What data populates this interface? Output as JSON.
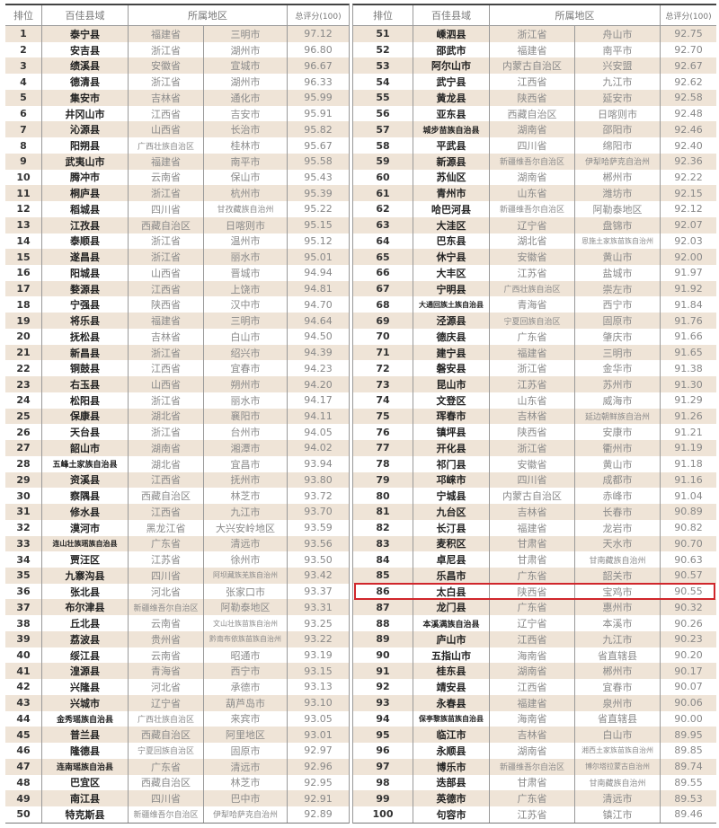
{
  "header": {
    "rank": "排位",
    "name": "百佳县域",
    "region": "所属地区",
    "score": "总评分(100)"
  },
  "highlight_rank": 86,
  "highlight_color": "#d0262b",
  "rows": [
    [
      "1",
      "泰宁县",
      "福建省",
      "三明市",
      "97.12"
    ],
    [
      "2",
      "安吉县",
      "浙江省",
      "湖州市",
      "96.80"
    ],
    [
      "3",
      "绩溪县",
      "安徽省",
      "宣城市",
      "96.67"
    ],
    [
      "4",
      "德清县",
      "浙江省",
      "湖州市",
      "96.33"
    ],
    [
      "5",
      "集安市",
      "吉林省",
      "通化市",
      "95.99"
    ],
    [
      "6",
      "井冈山市",
      "江西省",
      "吉安市",
      "95.91"
    ],
    [
      "7",
      "沁源县",
      "山西省",
      "长治市",
      "95.82"
    ],
    [
      "8",
      "阳朔县",
      "广西壮族自治区",
      "桂林市",
      "95.67"
    ],
    [
      "9",
      "武夷山市",
      "福建省",
      "南平市",
      "95.58"
    ],
    [
      "10",
      "腾冲市",
      "云南省",
      "保山市",
      "95.43"
    ],
    [
      "11",
      "桐庐县",
      "浙江省",
      "杭州市",
      "95.39"
    ],
    [
      "12",
      "稻城县",
      "四川省",
      "甘孜藏族自治州",
      "95.22"
    ],
    [
      "13",
      "江孜县",
      "西藏自治区",
      "日喀则市",
      "95.15"
    ],
    [
      "14",
      "泰顺县",
      "浙江省",
      "温州市",
      "95.12"
    ],
    [
      "15",
      "遂昌县",
      "浙江省",
      "丽水市",
      "95.01"
    ],
    [
      "16",
      "阳城县",
      "山西省",
      "晋城市",
      "94.94"
    ],
    [
      "17",
      "婺源县",
      "江西省",
      "上饶市",
      "94.81"
    ],
    [
      "18",
      "宁强县",
      "陕西省",
      "汉中市",
      "94.70"
    ],
    [
      "19",
      "将乐县",
      "福建省",
      "三明市",
      "94.64"
    ],
    [
      "20",
      "抚松县",
      "吉林省",
      "白山市",
      "94.50"
    ],
    [
      "21",
      "新昌县",
      "浙江省",
      "绍兴市",
      "94.39"
    ],
    [
      "22",
      "铜鼓县",
      "江西省",
      "宜春市",
      "94.23"
    ],
    [
      "23",
      "右玉县",
      "山西省",
      "朔州市",
      "94.20"
    ],
    [
      "24",
      "松阳县",
      "浙江省",
      "丽水市",
      "94.17"
    ],
    [
      "25",
      "保康县",
      "湖北省",
      "襄阳市",
      "94.11"
    ],
    [
      "26",
      "天台县",
      "浙江省",
      "台州市",
      "94.05"
    ],
    [
      "27",
      "韶山市",
      "湖南省",
      "湘潭市",
      "94.02"
    ],
    [
      "28",
      "五峰土家族自治县",
      "湖北省",
      "宜昌市",
      "93.94"
    ],
    [
      "29",
      "资溪县",
      "江西省",
      "抚州市",
      "93.80"
    ],
    [
      "30",
      "察隅县",
      "西藏自治区",
      "林芝市",
      "93.72"
    ],
    [
      "31",
      "修水县",
      "江西省",
      "九江市",
      "93.70"
    ],
    [
      "32",
      "漠河市",
      "黑龙江省",
      "大兴安岭地区",
      "93.59"
    ],
    [
      "33",
      "连山壮族瑶族自治县",
      "广东省",
      "清远市",
      "93.56"
    ],
    [
      "34",
      "贾汪区",
      "江苏省",
      "徐州市",
      "93.50"
    ],
    [
      "35",
      "九寨沟县",
      "四川省",
      "阿坝藏族羌族自治州",
      "93.42"
    ],
    [
      "36",
      "张北县",
      "河北省",
      "张家口市",
      "93.37"
    ],
    [
      "37",
      "布尔津县",
      "新疆维吾尔自治区",
      "阿勒泰地区",
      "93.31"
    ],
    [
      "38",
      "丘北县",
      "云南省",
      "文山壮族苗族自治州",
      "93.25"
    ],
    [
      "39",
      "荔波县",
      "贵州省",
      "黔南布依族苗族自治州",
      "93.22"
    ],
    [
      "40",
      "绥江县",
      "云南省",
      "昭通市",
      "93.19"
    ],
    [
      "41",
      "湟源县",
      "青海省",
      "西宁市",
      "93.15"
    ],
    [
      "42",
      "兴隆县",
      "河北省",
      "承德市",
      "93.13"
    ],
    [
      "43",
      "兴城市",
      "辽宁省",
      "葫芦岛市",
      "93.10"
    ],
    [
      "44",
      "金秀瑶族自治县",
      "广西壮族自治区",
      "来宾市",
      "93.05"
    ],
    [
      "45",
      "普兰县",
      "西藏自治区",
      "阿里地区",
      "93.01"
    ],
    [
      "46",
      "隆德县",
      "宁夏回族自治区",
      "固原市",
      "92.97"
    ],
    [
      "47",
      "连南瑶族自治县",
      "广东省",
      "清远市",
      "92.96"
    ],
    [
      "48",
      "巴宜区",
      "西藏自治区",
      "林芝市",
      "92.95"
    ],
    [
      "49",
      "南江县",
      "四川省",
      "巴中市",
      "92.91"
    ],
    [
      "50",
      "特克斯县",
      "新疆维吾尔自治区",
      "伊犁哈萨克自治州",
      "92.89"
    ],
    [
      "51",
      "嵊泗县",
      "浙江省",
      "舟山市",
      "92.75"
    ],
    [
      "52",
      "邵武市",
      "福建省",
      "南平市",
      "92.70"
    ],
    [
      "53",
      "阿尔山市",
      "内蒙古自治区",
      "兴安盟",
      "92.67"
    ],
    [
      "54",
      "武宁县",
      "江西省",
      "九江市",
      "92.62"
    ],
    [
      "55",
      "黄龙县",
      "陕西省",
      "延安市",
      "92.58"
    ],
    [
      "56",
      "亚东县",
      "西藏自治区",
      "日喀则市",
      "92.48"
    ],
    [
      "57",
      "城步苗族自治县",
      "湖南省",
      "邵阳市",
      "92.46"
    ],
    [
      "58",
      "平武县",
      "四川省",
      "绵阳市",
      "92.40"
    ],
    [
      "59",
      "新源县",
      "新疆维吾尔自治区",
      "伊犁哈萨克自治州",
      "92.36"
    ],
    [
      "60",
      "苏仙区",
      "湖南省",
      "郴州市",
      "92.22"
    ],
    [
      "61",
      "青州市",
      "山东省",
      "潍坊市",
      "92.15"
    ],
    [
      "62",
      "哈巴河县",
      "新疆维吾尔自治区",
      "阿勒泰地区",
      "92.12"
    ],
    [
      "63",
      "大洼区",
      "辽宁省",
      "盘锦市",
      "92.07"
    ],
    [
      "64",
      "巴东县",
      "湖北省",
      "恩施土家族苗族自治州",
      "92.03"
    ],
    [
      "65",
      "休宁县",
      "安徽省",
      "黄山市",
      "92.00"
    ],
    [
      "66",
      "大丰区",
      "江苏省",
      "盐城市",
      "91.97"
    ],
    [
      "67",
      "宁明县",
      "广西壮族自治区",
      "崇左市",
      "91.92"
    ],
    [
      "68",
      "大通回族土族自治县",
      "青海省",
      "西宁市",
      "91.84"
    ],
    [
      "69",
      "泾源县",
      "宁夏回族自治区",
      "固原市",
      "91.76"
    ],
    [
      "70",
      "德庆县",
      "广东省",
      "肇庆市",
      "91.66"
    ],
    [
      "71",
      "建宁县",
      "福建省",
      "三明市",
      "91.65"
    ],
    [
      "72",
      "磐安县",
      "浙江省",
      "金华市",
      "91.38"
    ],
    [
      "73",
      "昆山市",
      "江苏省",
      "苏州市",
      "91.30"
    ],
    [
      "74",
      "文登区",
      "山东省",
      "威海市",
      "91.29"
    ],
    [
      "75",
      "珲春市",
      "吉林省",
      "延边朝鲜族自治州",
      "91.26"
    ],
    [
      "76",
      "镇坪县",
      "陕西省",
      "安康市",
      "91.21"
    ],
    [
      "77",
      "开化县",
      "浙江省",
      "衢州市",
      "91.19"
    ],
    [
      "78",
      "祁门县",
      "安徽省",
      "黄山市",
      "91.18"
    ],
    [
      "79",
      "邛崃市",
      "四川省",
      "成都市",
      "91.16"
    ],
    [
      "80",
      "宁城县",
      "内蒙古自治区",
      "赤峰市",
      "91.04"
    ],
    [
      "81",
      "九台区",
      "吉林省",
      "长春市",
      "90.89"
    ],
    [
      "82",
      "长汀县",
      "福建省",
      "龙岩市",
      "90.82"
    ],
    [
      "83",
      "麦积区",
      "甘肃省",
      "天水市",
      "90.70"
    ],
    [
      "84",
      "卓尼县",
      "甘肃省",
      "甘南藏族自治州",
      "90.63"
    ],
    [
      "85",
      "乐昌市",
      "广东省",
      "韶关市",
      "90.57"
    ],
    [
      "86",
      "太白县",
      "陕西省",
      "宝鸡市",
      "90.55"
    ],
    [
      "87",
      "龙门县",
      "广东省",
      "惠州市",
      "90.32"
    ],
    [
      "88",
      "本溪满族自治县",
      "辽宁省",
      "本溪市",
      "90.26"
    ],
    [
      "89",
      "庐山市",
      "江西省",
      "九江市",
      "90.23"
    ],
    [
      "90",
      "五指山市",
      "海南省",
      "省直辖县",
      "90.20"
    ],
    [
      "91",
      "桂东县",
      "湖南省",
      "郴州市",
      "90.17"
    ],
    [
      "92",
      "靖安县",
      "江西省",
      "宜春市",
      "90.07"
    ],
    [
      "93",
      "永春县",
      "福建省",
      "泉州市",
      "90.06"
    ],
    [
      "94",
      "保亭黎族苗族自治县",
      "海南省",
      "省直辖县",
      "90.00"
    ],
    [
      "95",
      "临江市",
      "吉林省",
      "白山市",
      "89.95"
    ],
    [
      "96",
      "永顺县",
      "湖南省",
      "湘西土家族苗族自治州",
      "89.85"
    ],
    [
      "97",
      "博乐市",
      "新疆维吾尔自治区",
      "博尔塔拉蒙古自治州",
      "89.74"
    ],
    [
      "98",
      "迭部县",
      "甘肃省",
      "甘南藏族自治州",
      "89.55"
    ],
    [
      "99",
      "英德市",
      "广东省",
      "清远市",
      "89.53"
    ],
    [
      "100",
      "句容市",
      "江苏省",
      "镇江市",
      "89.46"
    ]
  ]
}
